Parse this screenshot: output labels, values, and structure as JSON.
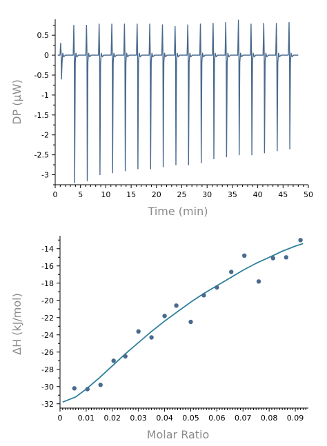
{
  "colors": {
    "trace": "#4a6a8e",
    "points": "#4a6a8e",
    "fit": "#2e7f9a",
    "axis": "#000000",
    "axis_title": "#8a8a8a"
  },
  "chart_data": [
    {
      "type": "line",
      "title": "",
      "xlabel": "Time (min)",
      "ylabel": "DP (μW)",
      "xlim": [
        0,
        50
      ],
      "ylim": [
        -3.25,
        0.9
      ],
      "xticks": [
        "0",
        "5",
        "10",
        "15",
        "20",
        "25",
        "30",
        "35",
        "40",
        "45",
        "50"
      ],
      "yticks": [
        "0.5",
        "0",
        "-0.5",
        "-1",
        "-1.5",
        "-2",
        "-2.5",
        "-3"
      ],
      "baseline": 0,
      "trace_end_time": 48,
      "grid": false,
      "series": [
        {
          "injections": [
            {
              "time": 1.2,
              "peak_up": 0.3,
              "peak_down": -0.6
            },
            {
              "time": 3.8,
              "peak_up": 0.75,
              "peak_down": -3.2
            },
            {
              "time": 6.3,
              "peak_up": 0.75,
              "peak_down": -3.15
            },
            {
              "time": 8.8,
              "peak_up": 0.78,
              "peak_down": -3.0
            },
            {
              "time": 11.3,
              "peak_up": 0.78,
              "peak_down": -2.95
            },
            {
              "time": 13.8,
              "peak_up": 0.78,
              "peak_down": -2.9
            },
            {
              "time": 16.3,
              "peak_up": 0.78,
              "peak_down": -2.85
            },
            {
              "time": 18.8,
              "peak_up": 0.78,
              "peak_down": -2.85
            },
            {
              "time": 21.3,
              "peak_up": 0.76,
              "peak_down": -2.8
            },
            {
              "time": 23.8,
              "peak_up": 0.72,
              "peak_down": -2.75
            },
            {
              "time": 26.3,
              "peak_up": 0.76,
              "peak_down": -2.75
            },
            {
              "time": 28.8,
              "peak_up": 0.78,
              "peak_down": -2.7
            },
            {
              "time": 31.3,
              "peak_up": 0.8,
              "peak_down": -2.6
            },
            {
              "time": 33.8,
              "peak_up": 0.82,
              "peak_down": -2.55
            },
            {
              "time": 36.3,
              "peak_up": 0.88,
              "peak_down": -2.5
            },
            {
              "time": 38.8,
              "peak_up": 0.78,
              "peak_down": -2.5
            },
            {
              "time": 41.3,
              "peak_up": 0.8,
              "peak_down": -2.45
            },
            {
              "time": 43.8,
              "peak_up": 0.8,
              "peak_down": -2.4
            },
            {
              "time": 46.3,
              "peak_up": 0.82,
              "peak_down": -2.35
            }
          ]
        }
      ]
    },
    {
      "type": "scatter",
      "title": "",
      "xlabel": "Molar Ratio",
      "ylabel": "ΔH (kJ/mol)",
      "xlim": [
        0,
        0.095
      ],
      "ylim": [
        -32.5,
        -12.5
      ],
      "xticks": [
        "0",
        "0.01",
        "0.02",
        "0.03",
        "0.04",
        "0.05",
        "0.06",
        "0.07",
        "0.08",
        "0.09"
      ],
      "yticks": [
        "-14",
        "-16",
        "-18",
        "-20",
        "-22",
        "-24",
        "-26",
        "-28",
        "-30",
        "-32"
      ],
      "grid": false,
      "series": [
        {
          "type": "scatter",
          "x": [
            0.0055,
            0.0105,
            0.0155,
            0.0205,
            0.025,
            0.03,
            0.035,
            0.04,
            0.0445,
            0.05,
            0.055,
            0.06,
            0.0655,
            0.0705,
            0.076,
            0.0815,
            0.0865,
            0.092
          ],
          "y": [
            -30.2,
            -30.3,
            -29.8,
            -27.0,
            -26.5,
            -23.6,
            -24.3,
            -21.8,
            -20.6,
            -22.5,
            -19.4,
            -18.5,
            -16.7,
            -14.8,
            -17.8,
            -15.1,
            -15.0,
            -13.0
          ]
        },
        {
          "type": "line",
          "x": [
            0.001,
            0.006,
            0.01,
            0.015,
            0.02,
            0.025,
            0.03,
            0.035,
            0.04,
            0.045,
            0.05,
            0.055,
            0.06,
            0.065,
            0.07,
            0.075,
            0.08,
            0.085,
            0.09,
            0.093
          ],
          "y": [
            -31.8,
            -31.2,
            -30.3,
            -29.0,
            -27.6,
            -26.2,
            -24.9,
            -23.6,
            -22.4,
            -21.3,
            -20.2,
            -19.2,
            -18.3,
            -17.4,
            -16.5,
            -15.7,
            -15.0,
            -14.3,
            -13.7,
            -13.4
          ]
        }
      ]
    }
  ]
}
